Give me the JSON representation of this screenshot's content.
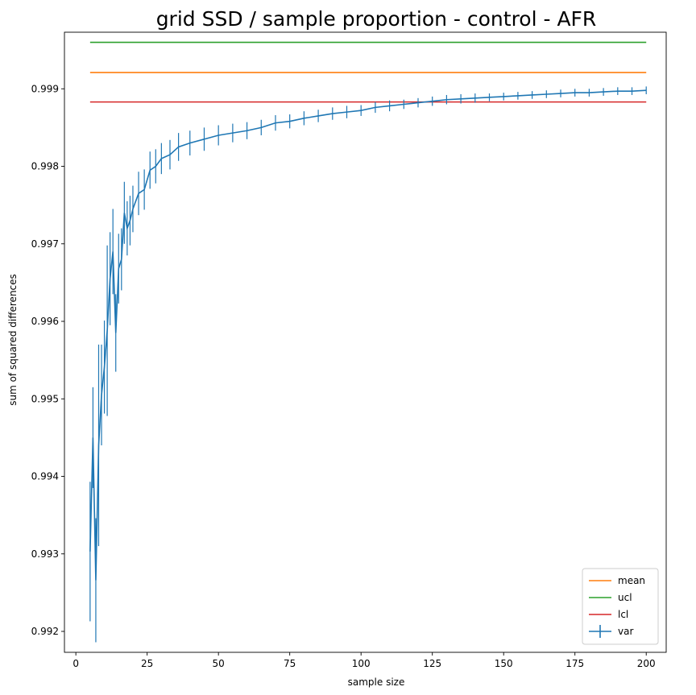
{
  "chart_data": {
    "type": "line",
    "title": "grid SSD / sample proportion - control - AFR",
    "xlabel": "sample size",
    "ylabel": "sum of squared differences",
    "xlim": [
      -4,
      207
    ],
    "ylim": [
      0.99173,
      0.99973
    ],
    "xticks": [
      0,
      25,
      50,
      75,
      100,
      125,
      150,
      175,
      200
    ],
    "xtick_labels": [
      "0",
      "25",
      "50",
      "75",
      "100",
      "125",
      "150",
      "175",
      "200"
    ],
    "yticks": [
      0.992,
      0.993,
      0.994,
      0.995,
      0.996,
      0.997,
      0.998,
      0.999
    ],
    "ytick_labels": [
      "0.992",
      "0.993",
      "0.994",
      "0.995",
      "0.996",
      "0.997",
      "0.998",
      "0.999"
    ],
    "grid": false,
    "legend": {
      "position": "bottom-right",
      "entries": [
        {
          "label": "mean",
          "color": "#ff7f0e",
          "marker": "line"
        },
        {
          "label": "ucl",
          "color": "#2ca02c",
          "marker": "line"
        },
        {
          "label": "lcl",
          "color": "#d62728",
          "marker": "line"
        },
        {
          "label": "var",
          "color": "#1f77b4",
          "marker": "errorbar"
        }
      ]
    },
    "series": [
      {
        "name": "mean",
        "color": "#ff7f0e",
        "kind": "hline",
        "x": [
          5,
          200
        ],
        "y": 0.99921
      },
      {
        "name": "ucl",
        "color": "#2ca02c",
        "kind": "hline",
        "x": [
          5,
          200
        ],
        "y": 0.9996
      },
      {
        "name": "lcl",
        "color": "#d62728",
        "kind": "hline",
        "x": [
          5,
          200
        ],
        "y": 0.99883
      },
      {
        "name": "var",
        "color": "#1f77b4",
        "kind": "errorbar",
        "x": [
          5,
          6,
          7,
          8,
          9,
          10,
          11,
          12,
          13,
          14,
          15,
          16,
          17,
          18,
          19,
          20,
          22,
          24,
          26,
          28,
          30,
          33,
          36,
          40,
          45,
          50,
          55,
          60,
          65,
          70,
          75,
          80,
          85,
          90,
          95,
          100,
          105,
          110,
          115,
          120,
          125,
          130,
          135,
          140,
          145,
          150,
          155,
          160,
          165,
          170,
          175,
          180,
          185,
          190,
          195,
          200
        ],
        "y": [
          0.99303,
          0.9945,
          0.99266,
          0.9944,
          0.99505,
          0.99541,
          0.99588,
          0.99655,
          0.9969,
          0.99585,
          0.99668,
          0.9968,
          0.9974,
          0.9972,
          0.9973,
          0.99745,
          0.99765,
          0.9977,
          0.99795,
          0.998,
          0.9981,
          0.99815,
          0.99825,
          0.9983,
          0.99835,
          0.9984,
          0.99843,
          0.99846,
          0.9985,
          0.99856,
          0.99858,
          0.99862,
          0.99865,
          0.99868,
          0.9987,
          0.99872,
          0.99876,
          0.99878,
          0.9988,
          0.99882,
          0.99884,
          0.99886,
          0.99887,
          0.99888,
          0.99889,
          0.9989,
          0.99891,
          0.99892,
          0.99893,
          0.99894,
          0.99895,
          0.99895,
          0.99896,
          0.99897,
          0.99897,
          0.99898
        ],
        "err": [
          0.0009,
          0.00065,
          0.0008,
          0.0013,
          0.00065,
          0.0006,
          0.0011,
          0.0006,
          0.00055,
          0.0005,
          0.00045,
          0.0004,
          0.0004,
          0.00035,
          0.00032,
          0.0003,
          0.00028,
          0.00026,
          0.00024,
          0.00022,
          0.0002,
          0.00019,
          0.00018,
          0.00016,
          0.00015,
          0.00013,
          0.00012,
          0.00011,
          0.0001,
          0.0001,
          9e-05,
          9e-05,
          8e-05,
          8e-05,
          8e-05,
          7e-05,
          7e-05,
          7e-05,
          6e-05,
          6e-05,
          6e-05,
          6e-05,
          6e-05,
          6e-05,
          5e-05,
          5e-05,
          5e-05,
          5e-05,
          5e-05,
          5e-05,
          5e-05,
          5e-05,
          5e-05,
          5e-05,
          5e-05,
          5e-05
        ]
      }
    ]
  }
}
